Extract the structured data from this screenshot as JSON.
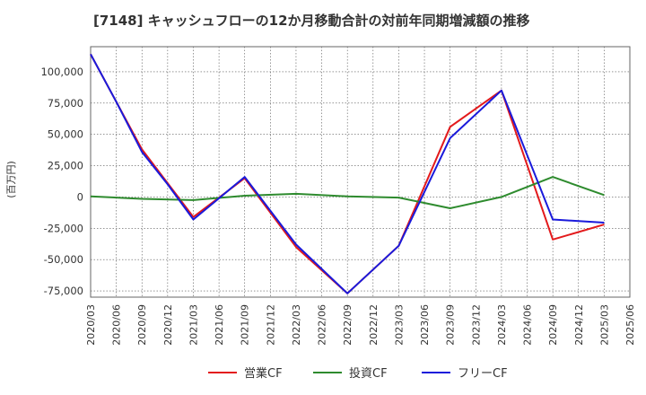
{
  "chart_data": {
    "type": "line",
    "title": "[7148]  キャッシュフローの12か月移動合計の対前年同期増減額の推移",
    "ylabel": "(百万円)",
    "xlabel": "",
    "ylim": [
      -80000,
      120000
    ],
    "yticks": [
      -75000,
      -50000,
      -25000,
      0,
      25000,
      50000,
      75000,
      100000
    ],
    "ytick_labels": [
      "-75,000",
      "-50,000",
      "-25,000",
      "0",
      "25,000",
      "50,000",
      "75,000",
      "100,000"
    ],
    "categories": [
      "2020/03",
      "2020/06",
      "2020/09",
      "2020/12",
      "2021/03",
      "2021/06",
      "2021/09",
      "2021/12",
      "2022/03",
      "2022/06",
      "2022/09",
      "2022/12",
      "2023/03",
      "2023/06",
      "2023/09",
      "2023/12",
      "2024/03",
      "2024/06",
      "2024/09",
      "2024/12",
      "2025/03",
      "2025/06"
    ],
    "grid": true,
    "legend_position": "bottom",
    "series": [
      {
        "name": "営業CF",
        "color": "#e31a1c",
        "values": [
          114000,
          76000,
          38000,
          11000,
          -16000,
          null,
          15000,
          null,
          -40000,
          null,
          -77000,
          null,
          -39000,
          null,
          56000,
          null,
          85000,
          null,
          -34000,
          null,
          -22000,
          null
        ]
      },
      {
        "name": "投資CF",
        "color": "#2e8b2e",
        "values": [
          500,
          null,
          -1500,
          null,
          -2500,
          null,
          1000,
          null,
          2500,
          null,
          500,
          null,
          -500,
          null,
          -9000,
          null,
          0,
          null,
          16000,
          null,
          1500,
          null
        ]
      },
      {
        "name": "フリーCF",
        "color": "#1a1adb",
        "values": [
          114000,
          76000,
          36000,
          10000,
          -18000,
          null,
          16000,
          null,
          -38000,
          null,
          -77000,
          null,
          -39000,
          null,
          47000,
          null,
          85000,
          null,
          -18000,
          null,
          -20500,
          null
        ]
      }
    ]
  }
}
